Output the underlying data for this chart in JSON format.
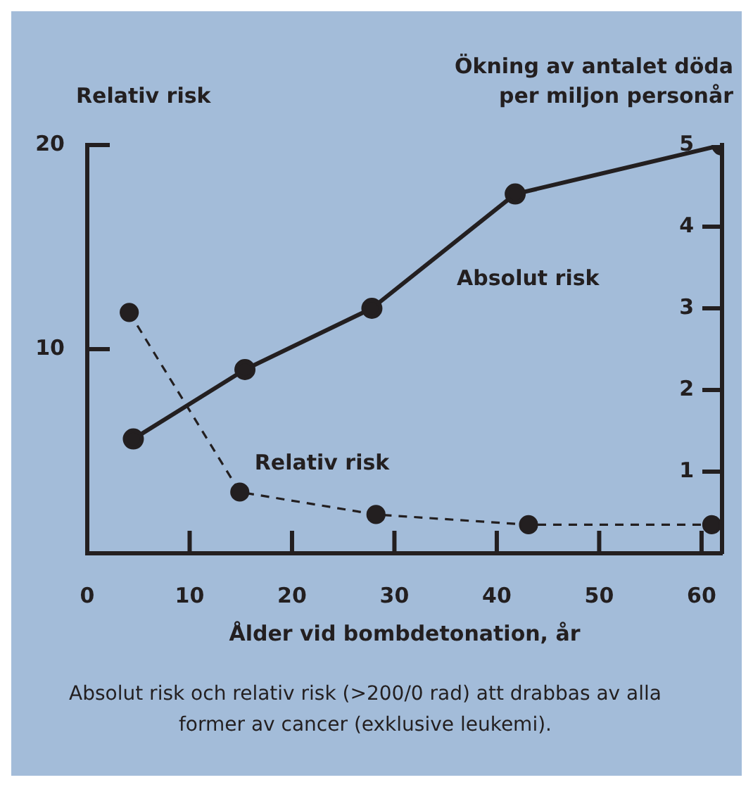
{
  "chart_data": {
    "type": "line",
    "xlabel": "Ålder vid bombdetonation, år",
    "ylabel": "Relativ risk",
    "y2label": "Ökning av antalet döda per miljon personår",
    "annotations": [
      "Absolut risk och relativ risk (>200/0 rad) att drabbas av alla former av cancer (exklusive leukemi)."
    ],
    "xlim": [
      0,
      62
    ],
    "xticks": [
      0,
      10,
      20,
      30,
      40,
      50,
      60
    ],
    "ylim": [
      0,
      20
    ],
    "yticks": [
      10,
      20
    ],
    "y2lim": [
      0,
      5
    ],
    "y2ticks": [
      1,
      2,
      3,
      4,
      5
    ],
    "marker": "circle",
    "series": [
      {
        "name": "Absolut risk",
        "color": "#231f20",
        "axis": "y2",
        "line_style": "solid",
        "x": [
          4.5,
          15.4,
          27.8,
          41.8,
          62
        ],
        "values": [
          1.4,
          2.25,
          3.0,
          4.4,
          5.0
        ]
      },
      {
        "name": "Relativ risk",
        "color": "#231f20",
        "axis": "y",
        "line_style": "dashed",
        "x": [
          4.1,
          14.9,
          28.2,
          43.1,
          61
        ],
        "values": [
          11.8,
          3.0,
          1.9,
          1.4,
          1.4
        ]
      }
    ]
  }
}
